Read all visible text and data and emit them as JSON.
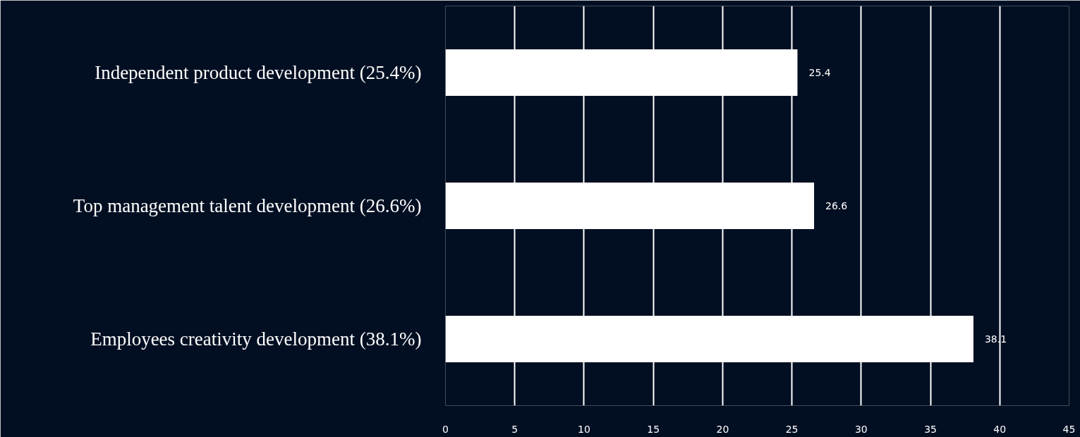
{
  "chart_data": {
    "type": "bar",
    "orientation": "horizontal",
    "categories": [
      "Independent product development (25.4%)",
      "Top management talent development (26.6%)",
      "Employees creativity development (38.1%)"
    ],
    "values": [
      25.4,
      26.6,
      38.1
    ],
    "color": "#ffffff",
    "xlim": [
      0,
      45
    ],
    "xticks": [
      0,
      5,
      10,
      15,
      20,
      25,
      30,
      35,
      40,
      45
    ],
    "grid": "x",
    "data_labels": true
  }
}
